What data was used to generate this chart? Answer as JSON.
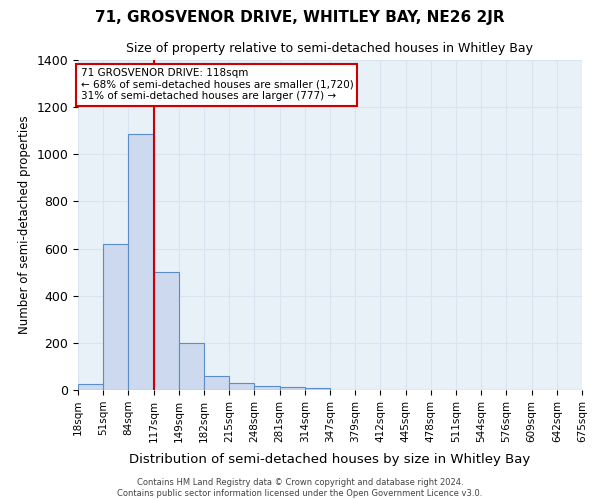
{
  "title": "71, GROSVENOR DRIVE, WHITLEY BAY, NE26 2JR",
  "subtitle": "Size of property relative to semi-detached houses in Whitley Bay",
  "xlabel": "Distribution of semi-detached houses by size in Whitley Bay",
  "ylabel": "Number of semi-detached properties",
  "bins": [
    "18sqm",
    "51sqm",
    "84sqm",
    "117sqm",
    "149sqm",
    "182sqm",
    "215sqm",
    "248sqm",
    "281sqm",
    "314sqm",
    "347sqm",
    "379sqm",
    "412sqm",
    "445sqm",
    "478sqm",
    "511sqm",
    "544sqm",
    "576sqm",
    "609sqm",
    "642sqm",
    "675sqm"
  ],
  "values": [
    25,
    620,
    1085,
    500,
    200,
    60,
    30,
    18,
    12,
    10,
    0,
    0,
    0,
    0,
    0,
    0,
    0,
    0,
    0,
    0
  ],
  "bar_color": "#ccd9ee",
  "bar_edge_color": "#5b8dc8",
  "property_line_color": "#cc0000",
  "property_line_index": 3,
  "ylim": [
    0,
    1400
  ],
  "yticks": [
    0,
    200,
    400,
    600,
    800,
    1000,
    1200,
    1400
  ],
  "annotation_line1": "71 GROSVENOR DRIVE: 118sqm",
  "annotation_line2": "← 68% of semi-detached houses are smaller (1,720)",
  "annotation_line3": "31% of semi-detached houses are larger (777) →",
  "annotation_box_color": "#ffffff",
  "annotation_box_edge": "#cc0000",
  "footnote1": "Contains HM Land Registry data © Crown copyright and database right 2024.",
  "footnote2": "Contains public sector information licensed under the Open Government Licence v3.0.",
  "grid_color": "#d8e4f0",
  "background_color": "#e8f0f8",
  "title_fontsize": 11,
  "subtitle_fontsize": 9
}
